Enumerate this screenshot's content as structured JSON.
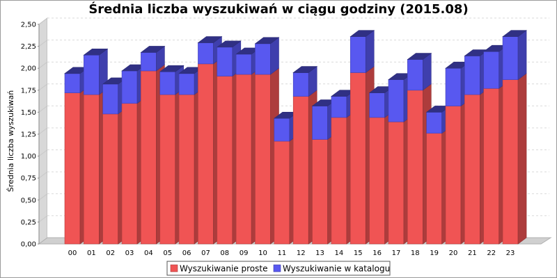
{
  "chart_data": {
    "type": "bar",
    "stacked": true,
    "three_d": true,
    "title": "Średnia liczba wyszukiwań w ciągu godziny (2015.08)",
    "xlabel": "",
    "ylabel": "Średnia liczba wyszukiwań",
    "ylim": [
      0,
      2.5
    ],
    "yticks": [
      "0,00",
      "0,25",
      "0,50",
      "0,75",
      "1,00",
      "1,25",
      "1,50",
      "1,75",
      "2,00",
      "2,25",
      "2,50"
    ],
    "grid": true,
    "legend_position": "bottom",
    "categories": [
      "00",
      "01",
      "02",
      "03",
      "04",
      "05",
      "06",
      "07",
      "08",
      "09",
      "10",
      "11",
      "12",
      "13",
      "14",
      "15",
      "16",
      "17",
      "18",
      "19",
      "20",
      "21",
      "22",
      "23"
    ],
    "series": [
      {
        "name": "Wyszukiwanie proste",
        "color": "#f05454",
        "values": [
          1.72,
          1.7,
          1.48,
          1.6,
          1.97,
          1.7,
          1.7,
          2.05,
          1.91,
          1.93,
          1.93,
          1.17,
          1.68,
          1.19,
          1.44,
          1.95,
          1.44,
          1.39,
          1.75,
          1.26,
          1.57,
          1.7,
          1.77,
          1.87
        ]
      },
      {
        "name": "Wyszukiwanie w katalogu",
        "color": "#5858f0",
        "values": [
          0.22,
          0.45,
          0.34,
          0.37,
          0.21,
          0.26,
          0.24,
          0.24,
          0.33,
          0.23,
          0.35,
          0.26,
          0.27,
          0.38,
          0.24,
          0.41,
          0.28,
          0.48,
          0.35,
          0.24,
          0.43,
          0.44,
          0.42,
          0.49
        ]
      }
    ]
  }
}
